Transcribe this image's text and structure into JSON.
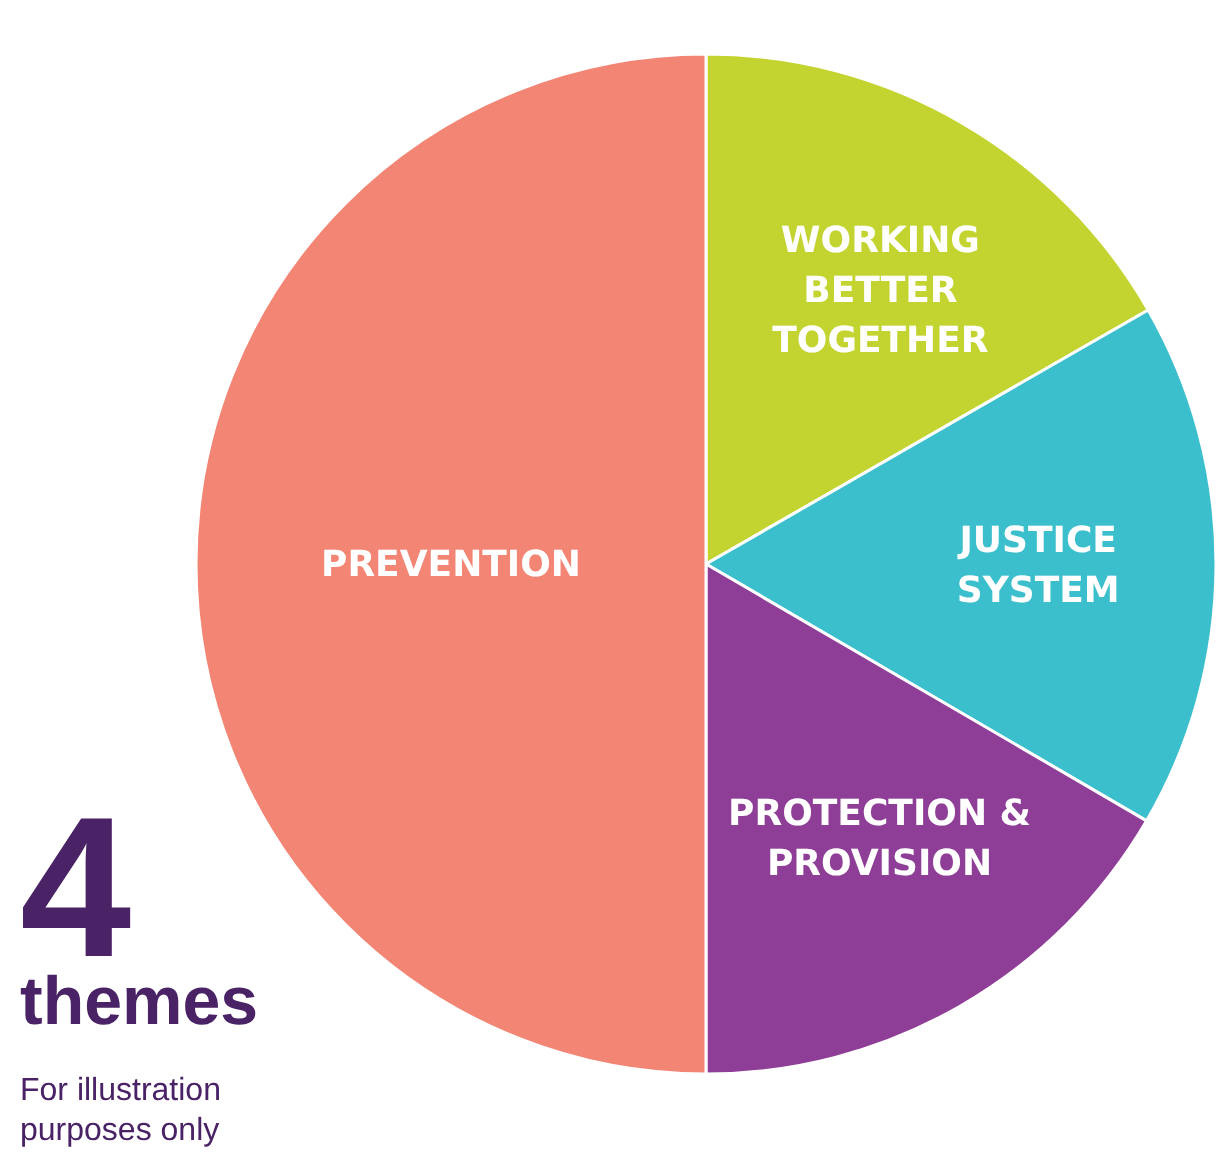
{
  "chart_data": {
    "type": "pie",
    "categories": [
      "WORKING BETTER TOGETHER",
      "JUSTICE SYSTEM",
      "PROTECTION & PROVISION",
      "PREVENTION"
    ],
    "values": [
      16.7,
      16.7,
      16.6,
      50
    ],
    "colors": [
      "#c3d431",
      "#3bbfcd",
      "#8f3e97",
      "#f38575"
    ],
    "annotations": [
      "4",
      "themes",
      "For illustration purposes only"
    ],
    "legend": false
  }
}
